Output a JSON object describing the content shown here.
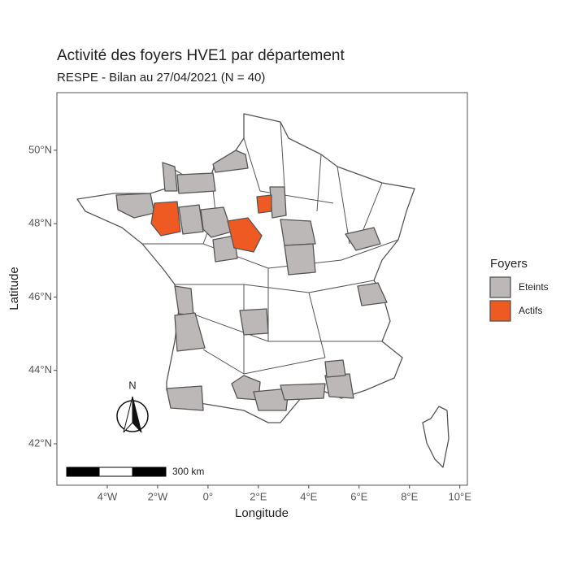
{
  "chart_data": {
    "type": "map",
    "title": "Activité des foyers HVE1 par département",
    "subtitle": "RESPE - Bilan au 27/04/2021 (N = 40)",
    "x_label": "Longitude",
    "y_label": "Latitude",
    "xlim": [
      -6,
      10.3
    ],
    "ylim": [
      40.87,
      51.57
    ],
    "xticks": [
      {
        "value": -4,
        "label": "4°W"
      },
      {
        "value": -2,
        "label": "2°W"
      },
      {
        "value": 0,
        "label": "0°"
      },
      {
        "value": 2,
        "label": "2°E"
      },
      {
        "value": 4,
        "label": "4°E"
      },
      {
        "value": 6,
        "label": "6°E"
      },
      {
        "value": 8,
        "label": "8°E"
      },
      {
        "value": 10,
        "label": "10°E"
      }
    ],
    "yticks": [
      {
        "value": 42,
        "label": "42°N"
      },
      {
        "value": 44,
        "label": "44°N"
      },
      {
        "value": 46,
        "label": "46°N"
      },
      {
        "value": 48,
        "label": "48°N"
      },
      {
        "value": 50,
        "label": "50°N"
      }
    ],
    "legend": {
      "title": "Foyers",
      "items": [
        {
          "name": "Eteints",
          "color": "#bcb8b8"
        },
        {
          "name": "Actifs",
          "color": "#ee5a22"
        }
      ]
    },
    "north_arrow": "N",
    "scale_bar": "300 km"
  }
}
